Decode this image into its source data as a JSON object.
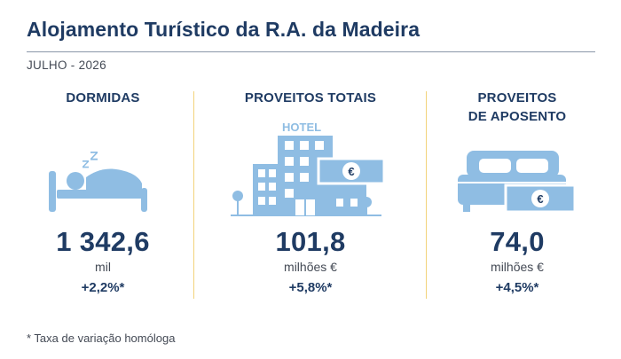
{
  "header": {
    "title": "Alojamento Turístico da R.A. da Madeira",
    "period": "JULHO - 2026"
  },
  "colors": {
    "navy": "#1f3b63",
    "icon_blue": "#8fbde3",
    "divider_yellow": "#f2d37a"
  },
  "indicators": [
    {
      "title": "DORMIDAS",
      "icon": "sleeping-person-icon",
      "value": "1 342,6",
      "unit": "mil",
      "change": "+2,2%*"
    },
    {
      "title": "PROVEITOS TOTAIS",
      "icon": "hotel-euro-icon",
      "icon_label": "HOTEL",
      "value": "101,8",
      "unit": "milhões €",
      "change": "+5,8%*"
    },
    {
      "title_line1": "PROVEITOS",
      "title_line2": "DE APOSENTO",
      "icon": "bed-euro-icon",
      "value": "74,0",
      "unit": "milhões €",
      "change": "+4,5%*"
    }
  ],
  "footnote": "* Taxa de variação homóloga"
}
